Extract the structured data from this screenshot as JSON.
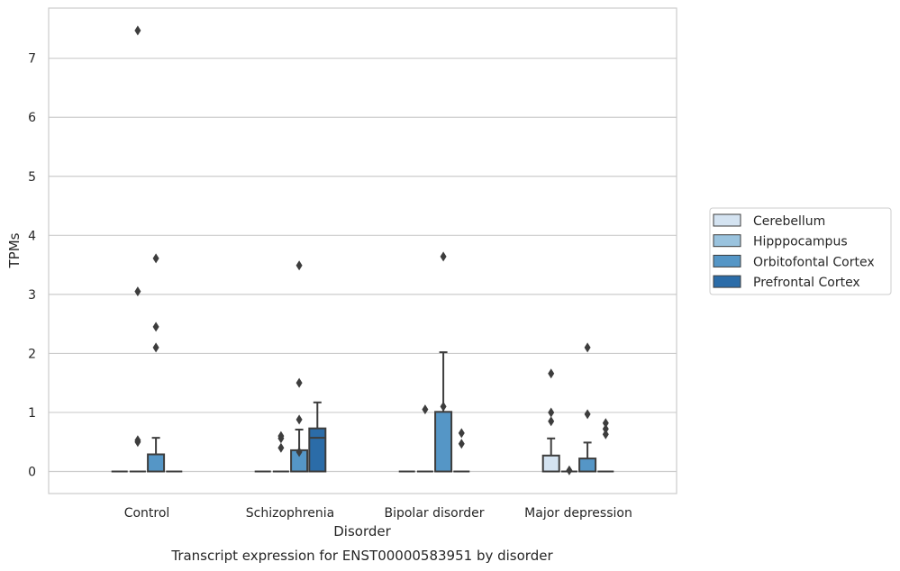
{
  "chart_data": {
    "type": "box",
    "xlabel": "Disorder",
    "ylabel": "TPMs",
    "caption": "Transcript expression for ENST00000583951 by disorder",
    "categories": [
      "Control",
      "Schizophrenia",
      "Bipolar disorder",
      "Major depression"
    ],
    "yticks": [
      0,
      1,
      2,
      3,
      4,
      5,
      6,
      7
    ],
    "ylim": [
      -0.37,
      7.85
    ],
    "grid": "horizontal",
    "legend_position": "right",
    "series": [
      {
        "name": "Cerebellum",
        "color": "#d4e3f1",
        "boxes": [
          {
            "category": "Control",
            "q1": 0,
            "median": 0,
            "q3": 0,
            "whislo": 0,
            "whishi": 0,
            "fliers": []
          },
          {
            "category": "Schizophrenia",
            "q1": 0,
            "median": 0,
            "q3": 0,
            "whislo": 0,
            "whishi": 0,
            "fliers": []
          },
          {
            "category": "Bipolar disorder",
            "q1": 0,
            "median": 0,
            "q3": 0,
            "whislo": 0,
            "whishi": 0,
            "fliers": []
          },
          {
            "category": "Major depression",
            "q1": 0,
            "median": 0,
            "q3": 0.27,
            "whislo": 0,
            "whishi": 0.56,
            "fliers": [
              0.85,
              1.0,
              1.66
            ]
          }
        ]
      },
      {
        "name": "Hipppocampus",
        "color": "#9ac3de",
        "boxes": [
          {
            "category": "Control",
            "q1": 0,
            "median": 0,
            "q3": 0,
            "whislo": 0,
            "whishi": 0,
            "fliers": [
              0.5,
              0.53,
              3.05,
              7.47
            ]
          },
          {
            "category": "Schizophrenia",
            "q1": 0,
            "median": 0,
            "q3": 0,
            "whislo": 0,
            "whishi": 0,
            "fliers": [
              0.4,
              0.56,
              0.6
            ]
          },
          {
            "category": "Bipolar disorder",
            "q1": 0,
            "median": 0,
            "q3": 0,
            "whislo": 0,
            "whishi": 0,
            "fliers": [
              1.05
            ]
          },
          {
            "category": "Major depression",
            "q1": 0,
            "median": 0,
            "q3": 0,
            "whislo": 0,
            "whishi": 0,
            "fliers": [
              0.02
            ]
          }
        ]
      },
      {
        "name": "Orbitofontal Cortex",
        "color": "#5596c6",
        "boxes": [
          {
            "category": "Control",
            "q1": 0,
            "median": 0,
            "q3": 0.29,
            "whislo": 0,
            "whishi": 0.57,
            "fliers": [
              2.1,
              2.45,
              3.61
            ]
          },
          {
            "category": "Schizophrenia",
            "q1": 0,
            "median": 0,
            "q3": 0.36,
            "whislo": 0,
            "whishi": 0.71,
            "fliers": [
              0.33,
              0.88,
              1.5,
              3.49
            ]
          },
          {
            "category": "Bipolar disorder",
            "q1": 0,
            "median": 0,
            "q3": 1.01,
            "whislo": 0,
            "whishi": 2.02,
            "fliers": [
              1.1,
              3.64
            ]
          },
          {
            "category": "Major depression",
            "q1": 0,
            "median": 0,
            "q3": 0.22,
            "whislo": 0,
            "whishi": 0.49,
            "fliers": [
              0.97,
              2.1
            ]
          }
        ]
      },
      {
        "name": "Prefrontal Cortex",
        "color": "#2b6ca8",
        "boxes": [
          {
            "category": "Control",
            "q1": 0,
            "median": 0,
            "q3": 0,
            "whislo": 0,
            "whishi": 0,
            "fliers": []
          },
          {
            "category": "Schizophrenia",
            "q1": 0,
            "median": 0.57,
            "q3": 0.73,
            "whislo": 0,
            "whishi": 1.17,
            "fliers": []
          },
          {
            "category": "Bipolar disorder",
            "q1": 0,
            "median": 0,
            "q3": 0,
            "whislo": 0,
            "whishi": 0,
            "fliers": [
              0.47,
              0.65
            ]
          },
          {
            "category": "Major depression",
            "q1": 0,
            "median": 0,
            "q3": 0,
            "whislo": 0,
            "whishi": 0,
            "fliers": [
              0.63,
              0.72,
              0.82
            ]
          }
        ]
      }
    ]
  }
}
